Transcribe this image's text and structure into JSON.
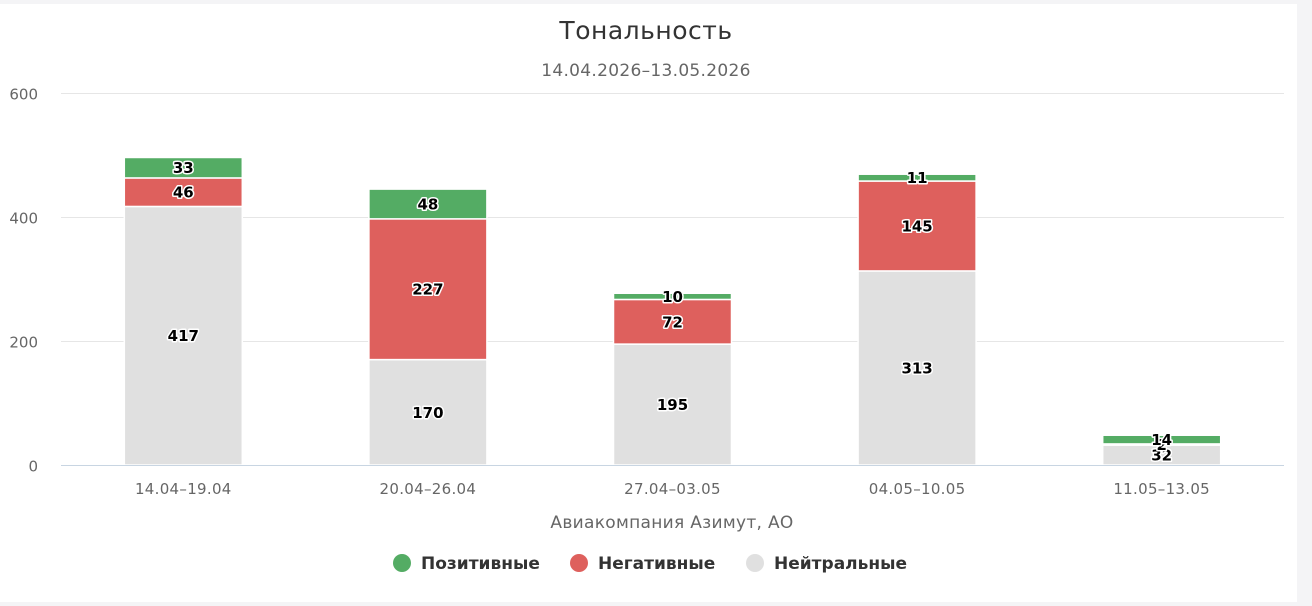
{
  "chart_data": {
    "type": "bar",
    "stacked": true,
    "title": "Тональность",
    "subtitle": "14.04.2026–13.05.2026",
    "xlabel": "Авиакомпания Азимут, АО",
    "ylabel": "",
    "ylim": [
      0,
      600
    ],
    "yticks": [
      0,
      200,
      400,
      600
    ],
    "grid": true,
    "legend_position": "bottom",
    "categories": [
      "14.04–19.04",
      "20.04–26.04",
      "27.04–03.05",
      "04.05–10.05",
      "11.05–13.05"
    ],
    "series": [
      {
        "name": "Нейтральные",
        "color": "#e0e0e0",
        "values": [
          417,
          170,
          195,
          313,
          32
        ]
      },
      {
        "name": "Негативные",
        "color": "#de605d",
        "values": [
          46,
          227,
          72,
          145,
          2
        ]
      },
      {
        "name": "Позитивные",
        "color": "#54ac64",
        "values": [
          33,
          48,
          10,
          11,
          14
        ]
      }
    ],
    "legend": [
      "Позитивные",
      "Негативные",
      "Нейтральные"
    ]
  }
}
